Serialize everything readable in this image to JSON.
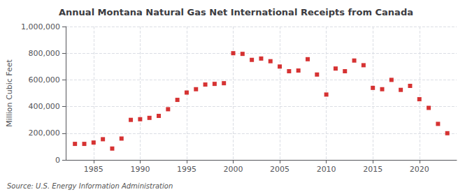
{
  "chart_data": {
    "type": "scatter",
    "title": "Annual Montana Natural Gas Net International Receipts from Canada",
    "ylabel": "Million Cubic Feet",
    "annotations": [
      "Source: U.S. Energy Information Administration"
    ],
    "x": [
      1983,
      1984,
      1985,
      1986,
      1987,
      1988,
      1989,
      1990,
      1991,
      1992,
      1993,
      1994,
      1995,
      1996,
      1997,
      1998,
      1999,
      2000,
      2001,
      2002,
      2003,
      2004,
      2005,
      2006,
      2007,
      2008,
      2009,
      2010,
      2011,
      2012,
      2013,
      2014,
      2015,
      2016,
      2017,
      2018,
      2019,
      2020,
      2021,
      2022,
      2023
    ],
    "values": [
      120000,
      120000,
      130000,
      155000,
      85000,
      160000,
      300000,
      305000,
      315000,
      330000,
      380000,
      450000,
      505000,
      530000,
      565000,
      570000,
      575000,
      800000,
      795000,
      750000,
      760000,
      740000,
      700000,
      665000,
      670000,
      755000,
      640000,
      490000,
      685000,
      665000,
      745000,
      710000,
      540000,
      530000,
      600000,
      525000,
      555000,
      455000,
      390000,
      270000,
      200000
    ],
    "color": "#cc0000",
    "marker": "square",
    "xlim": [
      1982,
      2024
    ],
    "xticks": [
      1985,
      1990,
      1995,
      2000,
      2005,
      2010,
      2015,
      2020
    ],
    "ylim": [
      0,
      1000000
    ],
    "yticks": [
      0,
      {
        "value": 200000,
        "label": "200,000"
      },
      {
        "value": 400000,
        "label": "400,000"
      },
      {
        "value": 600000,
        "label": "600,000"
      },
      {
        "value": 800000,
        "label": "800,000"
      },
      {
        "value": 1000000,
        "label": "1,000,000"
      }
    ],
    "grid": true
  }
}
